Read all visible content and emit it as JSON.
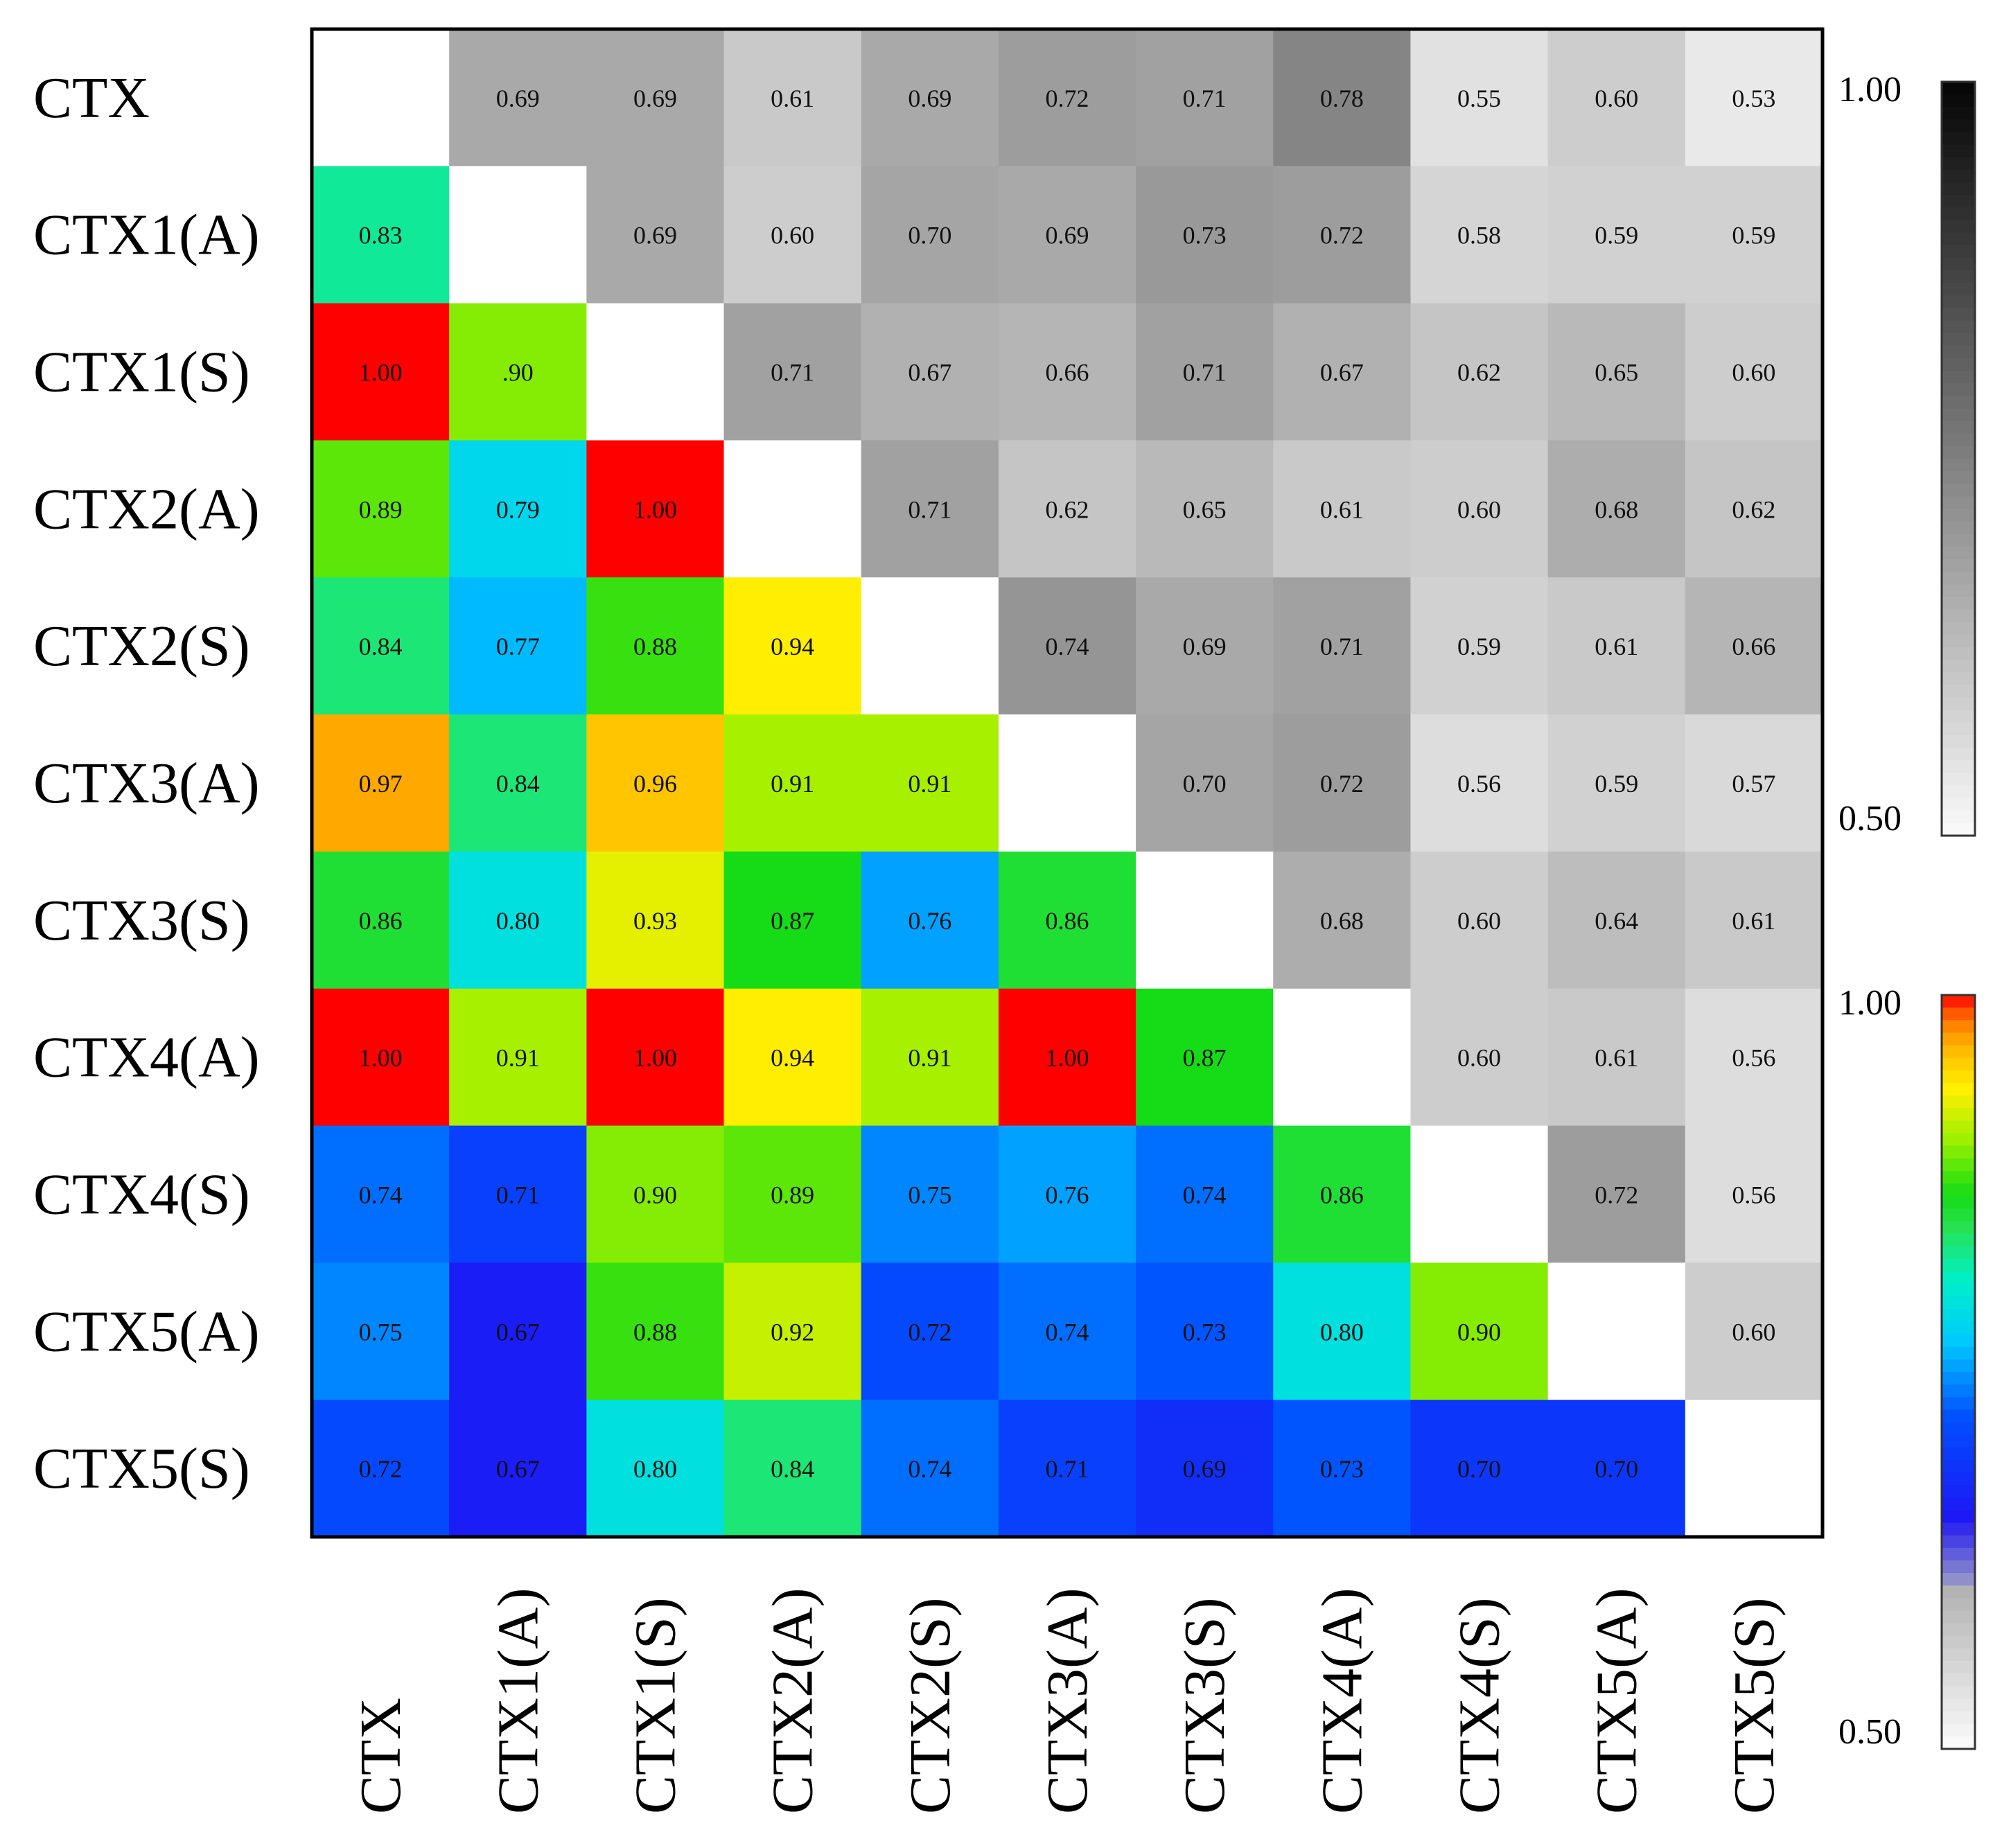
{
  "chart_data": {
    "type": "heatmap",
    "rows": [
      "CTX",
      "CTX1(A)",
      "CTX1(S)",
      "CTX2(A)",
      "CTX2(S)",
      "CTX3(A)",
      "CTX3(S)",
      "CTX4(A)",
      "CTX4(S)",
      "CTX5(A)",
      "CTX5(S)"
    ],
    "columns": [
      "CTX",
      "CTX1(A)",
      "CTX1(S)",
      "CTX2(A)",
      "CTX2(S)",
      "CTX3(A)",
      "CTX3(S)",
      "CTX4(A)",
      "CTX4(S)",
      "CTX5(A)",
      "CTX5(S)"
    ],
    "values": [
      [
        null,
        0.69,
        0.69,
        0.61,
        0.69,
        0.72,
        0.71,
        0.78,
        0.55,
        0.6,
        0.53
      ],
      [
        0.83,
        null,
        0.69,
        0.6,
        0.7,
        0.69,
        0.73,
        0.72,
        0.58,
        0.59,
        0.59
      ],
      [
        1.0,
        0.9,
        null,
        0.71,
        0.67,
        0.66,
        0.71,
        0.67,
        0.62,
        0.65,
        0.6
      ],
      [
        0.89,
        0.79,
        1.0,
        null,
        0.71,
        0.62,
        0.65,
        0.61,
        0.6,
        0.68,
        0.62
      ],
      [
        0.84,
        0.77,
        0.88,
        0.94,
        null,
        0.74,
        0.69,
        0.71,
        0.59,
        0.61,
        0.66
      ],
      [
        0.97,
        0.84,
        0.96,
        0.91,
        0.91,
        null,
        0.7,
        0.72,
        0.56,
        0.59,
        0.57
      ],
      [
        0.86,
        0.8,
        0.93,
        0.87,
        0.76,
        0.86,
        null,
        0.68,
        0.6,
        0.64,
        0.61
      ],
      [
        1.0,
        0.91,
        1.0,
        0.94,
        0.91,
        1.0,
        0.87,
        null,
        0.6,
        0.61,
        0.56
      ],
      [
        0.74,
        0.71,
        0.9,
        0.89,
        0.75,
        0.76,
        0.74,
        0.86,
        null,
        0.72,
        0.56
      ],
      [
        0.75,
        0.67,
        0.88,
        0.92,
        0.72,
        0.74,
        0.73,
        0.8,
        0.9,
        null,
        0.6
      ],
      [
        0.72,
        0.67,
        0.8,
        0.84,
        0.74,
        0.71,
        0.69,
        0.73,
        0.7,
        0.7,
        null
      ]
    ],
    "labels": [
      [
        "",
        "0.69",
        "0.69",
        "0.61",
        "0.69",
        "0.72",
        "0.71",
        "0.78",
        "0.55",
        "0.60",
        "0.53"
      ],
      [
        "0.83",
        "",
        "0.69",
        "0.60",
        "0.70",
        "0.69",
        "0.73",
        "0.72",
        "0.58",
        "0.59",
        "0.59"
      ],
      [
        "1.00",
        ".90",
        "",
        "0.71",
        "0.67",
        "0.66",
        "0.71",
        "0.67",
        "0.62",
        "0.65",
        "0.60"
      ],
      [
        "0.89",
        "0.79",
        "1.00",
        "",
        "0.71",
        "0.62",
        "0.65",
        "0.61",
        "0.60",
        "0.68",
        "0.62"
      ],
      [
        "0.84",
        "0.77",
        "0.88",
        "0.94",
        "",
        "0.74",
        "0.69",
        "0.71",
        "0.59",
        "0.61",
        "0.66"
      ],
      [
        "0.97",
        "0.84",
        "0.96",
        "0.91",
        "0.91",
        "",
        "0.70",
        "0.72",
        "0.56",
        "0.59",
        "0.57"
      ],
      [
        "0.86",
        "0.80",
        "0.93",
        "0.87",
        "0.76",
        "0.86",
        "",
        "0.68",
        "0.60",
        "0.64",
        "0.61"
      ],
      [
        "1.00",
        "0.91",
        "1.00",
        "0.94",
        "0.91",
        "1.00",
        "0.87",
        "",
        "0.60",
        "0.61",
        "0.56"
      ],
      [
        "0.74",
        "0.71",
        "0.90",
        "0.89",
        "0.75",
        "0.76",
        "0.74",
        "0.86",
        "",
        "0.72",
        "0.56"
      ],
      [
        "0.75",
        "0.67",
        "0.88",
        "0.92",
        "0.72",
        "0.74",
        "0.73",
        "0.80",
        "0.90",
        "",
        "0.60"
      ],
      [
        "0.72",
        "0.67",
        "0.80",
        "0.84",
        "0.74",
        "0.71",
        "0.69",
        "0.73",
        "0.70",
        "0.70",
        ""
      ]
    ],
    "upper_triangle_colormap": "grayscale",
    "lower_triangle_colormap": "rainbow",
    "diagonal_color": "#ffffff",
    "colorbars": [
      {
        "colormap": "grayscale",
        "max_label": "1.00",
        "min_label": "0.50",
        "range": [
          0.5,
          1.0
        ]
      },
      {
        "colormap": "rainbow",
        "max_label": "1.00",
        "min_label": "0.50",
        "range": [
          0.5,
          1.0
        ]
      }
    ],
    "xlabel": "",
    "ylabel": "",
    "title": ""
  }
}
